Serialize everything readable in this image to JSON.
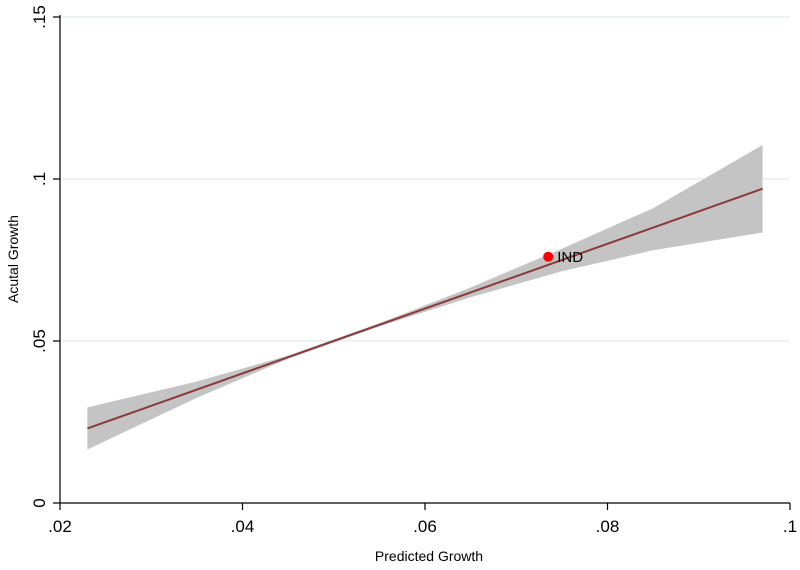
{
  "chart_data": {
    "type": "line",
    "title": "",
    "xlabel": "Predicted Growth",
    "ylabel": "Acutal Growth",
    "xlim": [
      0.02,
      0.1
    ],
    "ylim": [
      0,
      0.15
    ],
    "x_ticks": [
      {
        "value": 0.02,
        "label": ".02"
      },
      {
        "value": 0.04,
        "label": ".04"
      },
      {
        "value": 0.06,
        "label": ".06"
      },
      {
        "value": 0.08,
        "label": ".08"
      },
      {
        "value": 0.1,
        "label": ".1"
      }
    ],
    "y_ticks": [
      {
        "value": 0,
        "label": "0"
      },
      {
        "value": 0.05,
        "label": ".05"
      },
      {
        "value": 0.1,
        "label": ".1"
      },
      {
        "value": 0.15,
        "label": ".15"
      }
    ],
    "horizontal_grid": true,
    "fit_line": {
      "x": [
        0.023,
        0.097
      ],
      "y": [
        0.023,
        0.097
      ],
      "color": "#8b3a3a"
    },
    "confidence_band": {
      "color": "#c4c4c4",
      "x": [
        0.023,
        0.035,
        0.045,
        0.055,
        0.065,
        0.075,
        0.085,
        0.097
      ],
      "upper": [
        0.0295,
        0.0375,
        0.0455,
        0.0555,
        0.0665,
        0.0785,
        0.091,
        0.1105
      ],
      "lower": [
        0.0165,
        0.0325,
        0.0445,
        0.0545,
        0.0635,
        0.0715,
        0.078,
        0.0835
      ]
    },
    "points": [
      {
        "label": "IND",
        "x": 0.0735,
        "y": 0.076,
        "color": "#ff0000"
      }
    ]
  }
}
